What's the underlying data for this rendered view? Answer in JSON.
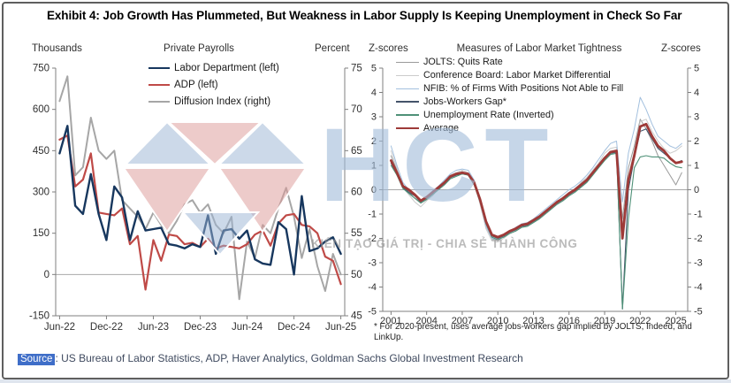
{
  "exhibit_title": "Exhibit 4: Job Growth Has Plummeted, But Weakness in Labor Supply Is Keeping Unemployment in Check So Far",
  "footnote": "* For 2020-present, uses average jobs-workers gap implied by JOLTS, Indeed, and LinkUp.",
  "source": {
    "label": "Source",
    "text": ": US Bureau of Labor Statistics, ADP, Haver Analytics, Goldman Sachs Global Investment Research"
  },
  "watermark": {
    "text": "HCT",
    "slogan": "KIẾN TẠO GIÁ TRỊ - CHIA SẺ THÀNH CÔNG",
    "logo_pink": "#dc9896",
    "logo_blue": "#9ab4d4"
  },
  "colors": {
    "axis": "#7f7f7f",
    "zero_line": "#a8a8a8",
    "tick_text": "#303030",
    "source_chip_bg": "#3f6ec8",
    "navy": "#17375e",
    "brick_red": "#bf4a47",
    "gray": "#a6a6a6",
    "dark_red": "#9e3a38",
    "sea_green": "#4f9178",
    "slate": "#44546a",
    "light_blue": "#a3c0de",
    "light_gray": "#cccccc",
    "mid_gray": "#9a9a9a"
  },
  "chart_data": [
    {
      "type": "line",
      "title": "Private Payrolls",
      "axes": {
        "left": {
          "label": "Thousands",
          "lim": [
            -150,
            750
          ],
          "ticks": [
            750,
            600,
            450,
            300,
            150,
            0,
            -150
          ]
        },
        "right": {
          "label": "Percent",
          "lim": [
            45,
            75
          ],
          "ticks": [
            75,
            70,
            65,
            60,
            55,
            50,
            45
          ]
        },
        "x": {
          "lim": [
            -0.5,
            36.5
          ],
          "tick_positions": [
            0,
            6,
            12,
            18,
            24,
            30,
            36
          ],
          "tick_labels": [
            "Jun-22",
            "Dec-22",
            "Jun-23",
            "Dec-23",
            "Jun-24",
            "Dec-24",
            "Jun-25"
          ]
        }
      },
      "zero_line": {
        "axis": "left",
        "value": 0
      },
      "series": [
        {
          "name": "Labor Department (left)",
          "axis": "left",
          "color": "#17375e",
          "width": 2.4,
          "values": [
            440,
            540,
            250,
            220,
            365,
            220,
            125,
            320,
            280,
            125,
            230,
            160,
            165,
            170,
            110,
            105,
            95,
            110,
            100,
            215,
            75,
            160,
            165,
            130,
            160,
            55,
            40,
            35,
            190,
            165,
            0,
            285,
            85,
            95,
            120,
            135,
            75
          ]
        },
        {
          "name": "ADP (left)",
          "axis": "left",
          "color": "#bf4a47",
          "width": 2.2,
          "values": [
            490,
            505,
            320,
            345,
            440,
            225,
            220,
            215,
            240,
            110,
            140,
            -55,
            125,
            50,
            145,
            140,
            110,
            115,
            100,
            130,
            95,
            105,
            100,
            95,
            110,
            145,
            160,
            105,
            185,
            215,
            220,
            180,
            175,
            150,
            65,
            50,
            -35
          ]
        },
        {
          "name": "Diffusion Index (right)",
          "axis": "right",
          "color": "#a6a6a6",
          "width": 2.0,
          "values": [
            71,
            74,
            62,
            63,
            69,
            65,
            64,
            65,
            59,
            58,
            57,
            55.5,
            57.5,
            56,
            55,
            56.5,
            58.5,
            59,
            57.5,
            58.5,
            56,
            55,
            57,
            47,
            54,
            52,
            56,
            55,
            58,
            60.5,
            57,
            52,
            55.5,
            51,
            48,
            52.5,
            50
          ]
        }
      ]
    },
    {
      "type": "line",
      "title": "Measures of Labor Market Tightness",
      "axes": {
        "left": {
          "label": "Z-scores",
          "lim": [
            -5,
            5
          ],
          "ticks": [
            5,
            4,
            3,
            2,
            1,
            0,
            -1,
            -2,
            -3,
            -4,
            -5
          ]
        },
        "right": {
          "label": "Z-scores",
          "lim": [
            -5,
            5
          ],
          "ticks": [
            5,
            4,
            3,
            2,
            1,
            0,
            -1,
            -2,
            -3,
            -4,
            -5
          ]
        },
        "x": {
          "lim": [
            2000.3,
            2026.0
          ],
          "tick_positions": [
            2001,
            2004,
            2007,
            2010,
            2013,
            2016,
            2019,
            2022,
            2025
          ],
          "tick_labels": [
            "2001",
            "2004",
            "2007",
            "2010",
            "2013",
            "2016",
            "2019",
            "2022",
            "2025"
          ]
        }
      },
      "zero_line": {
        "axis": "left",
        "value": 0
      },
      "x_values": [
        2001,
        2001.5,
        2002,
        2002.5,
        2003,
        2003.5,
        2004,
        2004.5,
        2005,
        2005.5,
        2006,
        2006.5,
        2007,
        2007.5,
        2008,
        2008.5,
        2009,
        2009.5,
        2010,
        2010.5,
        2011,
        2011.5,
        2012,
        2012.5,
        2013,
        2013.5,
        2014,
        2014.5,
        2015,
        2015.5,
        2016,
        2016.5,
        2017,
        2017.5,
        2018,
        2018.5,
        2019,
        2019.5,
        2020,
        2020.5,
        2021,
        2021.5,
        2022,
        2022.5,
        2023,
        2023.5,
        2024,
        2024.5,
        2025,
        2025.5
      ],
      "series": [
        {
          "name": "JOLTS: Quits Rate",
          "axis": "left",
          "color": "#9a9a9a",
          "width": 1.0,
          "values": [
            1.4,
            0.8,
            0.2,
            -0.1,
            -0.35,
            -0.5,
            -0.3,
            -0.2,
            0,
            0.25,
            0.5,
            0.6,
            0.75,
            0.6,
            0.2,
            -0.5,
            -1.5,
            -2,
            -2.1,
            -1.9,
            -1.75,
            -1.55,
            -1.5,
            -1.45,
            -1.3,
            -1.15,
            -0.95,
            -0.75,
            -0.55,
            -0.3,
            -0.2,
            0.05,
            0.25,
            0.45,
            0.75,
            1.05,
            1.35,
            1.5,
            1.55,
            -1.2,
            0.9,
            1.8,
            2.9,
            2.5,
            2,
            1.4,
            1,
            0.6,
            0.2,
            0.7
          ]
        },
        {
          "name": "Conference Board: Labor Market Differential",
          "axis": "left",
          "color": "#cccccc",
          "width": 1.0,
          "values": [
            1.6,
            0.9,
            0.1,
            -0.2,
            -0.5,
            -0.7,
            -0.45,
            -0.25,
            0.05,
            0.3,
            0.6,
            0.7,
            0.8,
            0.7,
            0.3,
            -0.6,
            -1.6,
            -2.1,
            -2.15,
            -2,
            -1.8,
            -1.7,
            -1.55,
            -1.5,
            -1.35,
            -1.2,
            -1,
            -0.8,
            -0.55,
            -0.4,
            -0.2,
            0,
            0.3,
            0.5,
            0.8,
            1.1,
            1.5,
            1.7,
            1.75,
            -1.5,
            0.5,
            1.6,
            2.8,
            2.9,
            2.4,
            2,
            1.7,
            1.5,
            1.6,
            1.8
          ]
        },
        {
          "name": "NFIB: % of Firms With Positions Not Able to Fill",
          "axis": "left",
          "color": "#a3c0de",
          "width": 1.0,
          "values": [
            1.8,
            1,
            0.3,
            0,
            -0.25,
            -0.5,
            -0.3,
            -0.05,
            0.15,
            0.4,
            0.65,
            0.8,
            0.85,
            0.8,
            0.4,
            -0.5,
            -1.5,
            -2,
            -2.05,
            -1.9,
            -1.7,
            -1.55,
            -1.4,
            -1.35,
            -1.2,
            -1,
            -0.8,
            -0.6,
            -0.4,
            -0.2,
            0,
            0.15,
            0.35,
            0.6,
            0.9,
            1.25,
            1.6,
            1.9,
            2,
            -0.5,
            1.5,
            2.5,
            3.8,
            3.3,
            2.7,
            2.2,
            2,
            1.8,
            1.7,
            1.9
          ]
        },
        {
          "name": "Jobs-Workers Gap*",
          "axis": "left",
          "color": "#44546a",
          "width": 1.1,
          "values": [
            1.1,
            0.6,
            0.1,
            -0.1,
            -0.25,
            -0.5,
            -0.35,
            -0.15,
            0.05,
            0.25,
            0.5,
            0.6,
            0.65,
            0.6,
            0.25,
            -0.45,
            -1.35,
            -1.9,
            -2,
            -1.9,
            -1.75,
            -1.65,
            -1.5,
            -1.45,
            -1.3,
            -1.15,
            -0.95,
            -0.75,
            -0.55,
            -0.4,
            -0.2,
            -0.05,
            0.15,
            0.35,
            0.65,
            0.95,
            1.25,
            1.5,
            1.55,
            -4.9,
            0,
            1.3,
            2.4,
            2.5,
            2.1,
            1.7,
            1.5,
            1.3,
            1.1,
            1.2
          ]
        },
        {
          "name": "Unemployment Rate (Inverted)",
          "axis": "left",
          "color": "#4f9178",
          "width": 1.1,
          "values": [
            1,
            0.6,
            0.05,
            -0.15,
            -0.35,
            -0.55,
            -0.4,
            -0.2,
            0,
            0.2,
            0.45,
            0.55,
            0.65,
            0.6,
            0.2,
            -0.5,
            -1.4,
            -1.95,
            -2.05,
            -1.95,
            -1.8,
            -1.7,
            -1.55,
            -1.5,
            -1.35,
            -1.2,
            -1,
            -0.8,
            -0.6,
            -0.45,
            -0.25,
            -0.1,
            0.1,
            0.3,
            0.6,
            0.9,
            1.2,
            1.45,
            1.5,
            -4.9,
            -1.2,
            0.9,
            1.35,
            1.4,
            1.35,
            1.35,
            1.3,
            1.1,
            0.95,
            0.9
          ]
        },
        {
          "name": "Average",
          "axis": "left",
          "color": "#9e3a38",
          "width": 2.8,
          "values": [
            1.2,
            0.7,
            0.15,
            0,
            -0.2,
            -0.45,
            -0.3,
            -0.1,
            0.1,
            0.3,
            0.55,
            0.65,
            0.7,
            0.65,
            0.3,
            -0.4,
            -1.3,
            -1.85,
            -1.95,
            -1.85,
            -1.7,
            -1.6,
            -1.45,
            -1.4,
            -1.25,
            -1.1,
            -0.9,
            -0.7,
            -0.5,
            -0.35,
            -0.15,
            0,
            0.2,
            0.4,
            0.7,
            1,
            1.3,
            1.55,
            1.6,
            -2,
            0.4,
            1.4,
            2.6,
            2.7,
            2.2,
            1.8,
            1.6,
            1.3,
            1.1,
            1.15
          ]
        }
      ]
    }
  ]
}
